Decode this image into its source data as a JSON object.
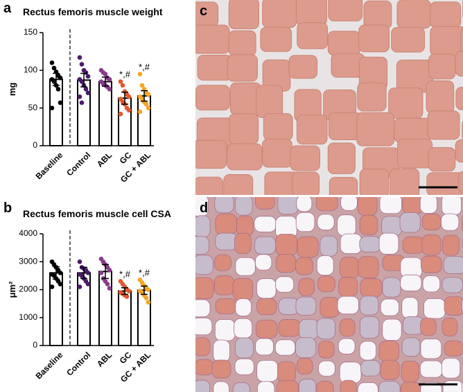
{
  "chart_data": [
    {
      "type": "bar",
      "panel": "a",
      "title": "Rectus femoris muscle weight",
      "ylabel": "mg",
      "categories": [
        "Baseline",
        "Control",
        "ABL",
        "GC",
        "GC + ABL"
      ],
      "colors": [
        "#000000",
        "#4a1b6b",
        "#8a3a8c",
        "#e4572e",
        "#f5a623"
      ],
      "values": [
        88,
        87,
        85,
        63,
        66
      ],
      "errors": [
        8,
        9,
        6,
        8,
        7
      ],
      "points": [
        [
          110,
          103,
          98,
          93,
          90,
          88,
          85,
          80,
          75,
          57,
          50
        ],
        [
          117,
          108,
          100,
          97,
          92,
          88,
          85,
          80,
          75,
          70,
          65,
          57
        ],
        [
          100,
          97,
          95,
          90,
          88,
          85,
          82,
          80,
          78,
          75
        ],
        [
          85,
          80,
          72,
          68,
          65,
          62,
          58,
          55,
          50,
          47,
          42
        ],
        [
          95,
          80,
          75,
          70,
          68,
          65,
          62,
          58,
          55,
          50,
          45
        ]
      ],
      "annotations": [
        {
          "category": "GC",
          "text": "*,#"
        },
        {
          "category": "GC + ABL",
          "text": "*,#"
        }
      ],
      "ylim": [
        0,
        150
      ],
      "yticks": [
        0,
        50,
        100,
        150
      ]
    },
    {
      "type": "bar",
      "panel": "b",
      "title": "Rectus femoris muscle cell CSA",
      "ylabel": "μm²",
      "categories": [
        "Baseline",
        "Control",
        "ABL",
        "GC",
        "GC + ABL"
      ],
      "colors": [
        "#000000",
        "#4a1b6b",
        "#8a3a8c",
        "#e4572e",
        "#f5a623"
      ],
      "values": [
        2600,
        2600,
        2650,
        1950,
        1980
      ],
      "errors": [
        220,
        200,
        250,
        120,
        150
      ],
      "points": [
        [
          3000,
          2900,
          2800,
          2700,
          2600,
          2550,
          2500,
          2400,
          2300,
          2200,
          2100
        ],
        [
          3000,
          2800,
          2750,
          2700,
          2600,
          2550,
          2500,
          2400,
          2300,
          2200,
          2100
        ],
        [
          3100,
          3000,
          2900,
          2800,
          2700,
          2600,
          2400,
          2300,
          2200,
          2050
        ],
        [
          2300,
          2200,
          2100,
          2000,
          1950,
          1900,
          1850,
          1800,
          1750
        ],
        [
          2350,
          2250,
          2150,
          2050,
          2000,
          1950,
          1900,
          1800,
          1700,
          1550
        ]
      ],
      "annotations": [
        {
          "category": "GC",
          "text": "*,#"
        },
        {
          "category": "GC + ABL",
          "text": "*,#"
        }
      ],
      "ylim": [
        0,
        4000
      ],
      "yticks": [
        0,
        1000,
        2000,
        3000,
        4000
      ]
    }
  ],
  "images": [
    {
      "label": "c"
    },
    {
      "label": "d"
    }
  ]
}
